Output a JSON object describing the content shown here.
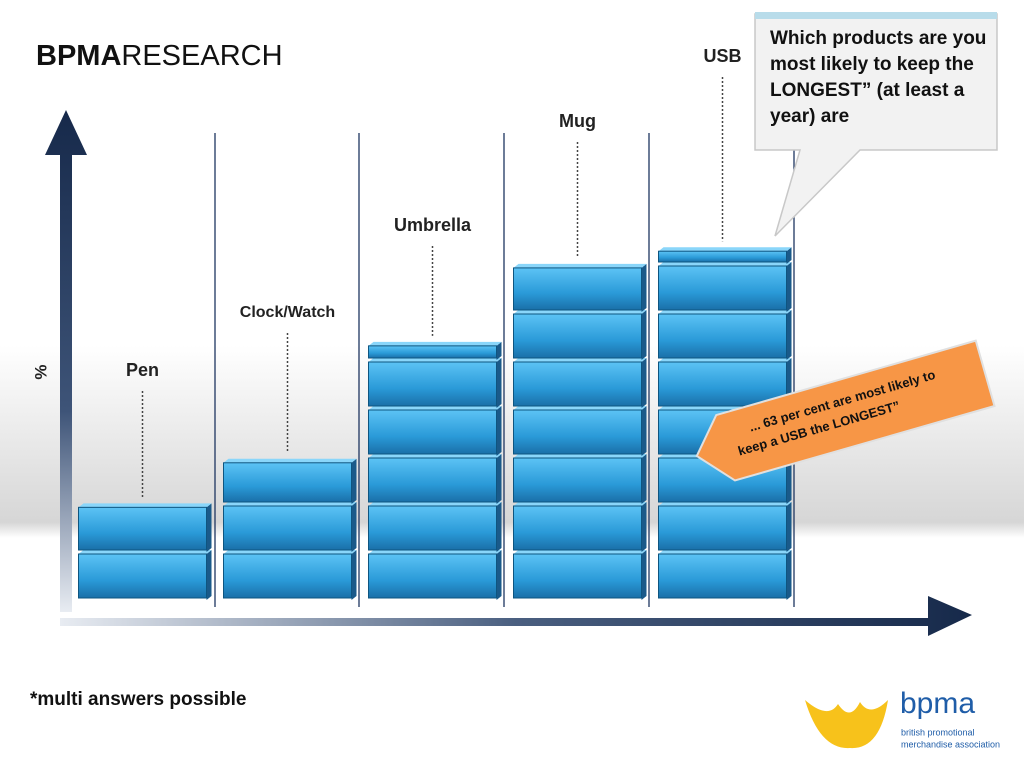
{
  "title_bold": "BPMA",
  "title_rest": "RESEARCH",
  "chart_data": {
    "type": "pictograph",
    "y_label": "%",
    "categories": [
      "Pen",
      "Clock/Watch",
      "Umbrella",
      "Mug",
      "USB"
    ],
    "values": [
      17,
      25,
      46,
      60,
      63
    ],
    "color": "#2a9ad8",
    "ylim": [
      0,
      88
    ],
    "callout": "Which products are you most likely to keep the LONGEST” (at least a year) are",
    "annotation_line1": "... 63 per cent are most likely to",
    "annotation_line2": "keep  a USB the LONGEST”"
  },
  "footnote": "*multi answers possible",
  "logo": {
    "name": "bpma",
    "line1": "british promotional",
    "line2": "merchandise association"
  }
}
